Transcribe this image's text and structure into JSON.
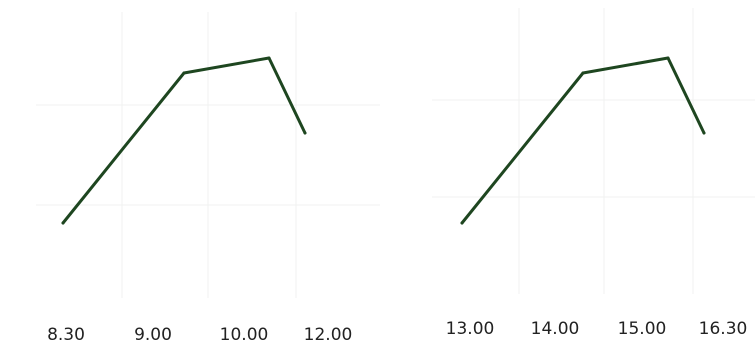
{
  "chart_data": [
    {
      "type": "line",
      "categories": [
        "8.30",
        "9.00",
        "10.00",
        "12.00"
      ],
      "series": [
        {
          "values": [
            2,
            5,
            5.3,
            3.8
          ]
        }
      ],
      "line_color": "#1e4620",
      "grid": true,
      "ylim": [
        0,
        6
      ]
    },
    {
      "type": "line",
      "categories": [
        "13.00",
        "14.00",
        "15.00",
        "16.30"
      ],
      "series": [
        {
          "values": [
            2,
            5,
            5.3,
            3.8
          ]
        }
      ],
      "line_color": "#1e4620",
      "grid": true,
      "ylim": [
        0,
        6
      ]
    }
  ]
}
